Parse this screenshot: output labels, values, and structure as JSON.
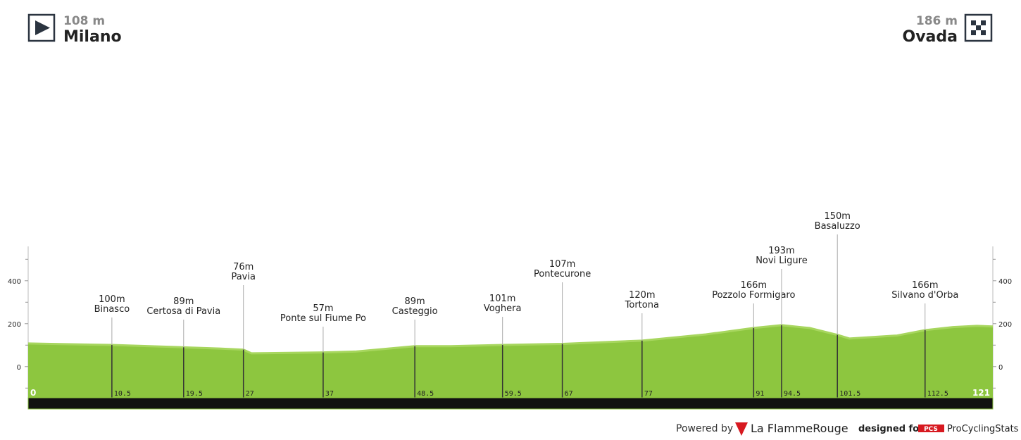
{
  "chart_data": {
    "type": "area",
    "start": {
      "elevation": "108 m",
      "name": "Milano"
    },
    "finish": {
      "elevation": "186 m",
      "name": "Ovada"
    },
    "profile": {
      "color": "#8dc63f",
      "x": [
        0,
        4,
        10.5,
        19.5,
        24,
        27,
        28,
        37,
        41,
        48.5,
        53,
        59.5,
        67,
        77,
        85,
        91,
        94.5,
        98,
        101.5,
        103,
        109,
        112.5,
        116,
        119,
        121
      ],
      "values": [
        108,
        105,
        101,
        90,
        84,
        79,
        62,
        66,
        70,
        95,
        95,
        101,
        106,
        121,
        150,
        180,
        193,
        180,
        148,
        131,
        145,
        170,
        184,
        190,
        187
      ]
    },
    "waypoints": {
      "x": [
        10.5,
        19.5,
        27,
        37,
        48.5,
        59.5,
        67,
        77,
        91,
        94.5,
        101.5,
        112.5
      ],
      "categories": [
        "Binasco",
        "Certosa di Pavia",
        "Pavia",
        "Ponte sul Fiume Po",
        "Casteggio",
        "Voghera",
        "Pontecurone",
        "Tortona",
        "Pozzolo Formigaro",
        "Novi Ligure",
        "Basaluzzo",
        "Silvano d'Orba"
      ],
      "values": [
        100,
        89,
        76,
        57,
        89,
        101,
        107,
        120,
        166,
        193,
        150,
        166
      ],
      "value_labels": [
        "100m",
        "89m",
        "76m",
        "57m",
        "89m",
        "101m",
        "107m",
        "120m",
        "166m",
        "193m",
        "150m",
        "166m"
      ]
    },
    "xlim": [
      0,
      121
    ],
    "ylim": [
      -145,
      560
    ],
    "yticks": [
      0,
      200,
      400
    ],
    "minor_yticks": [
      -100,
      100,
      300,
      500
    ],
    "footer": {
      "powered": "Powered by",
      "brand": "La FlammeRouge",
      "designed": "designed for",
      "pcs": "PCS",
      "site": "ProCyclingStats"
    }
  }
}
